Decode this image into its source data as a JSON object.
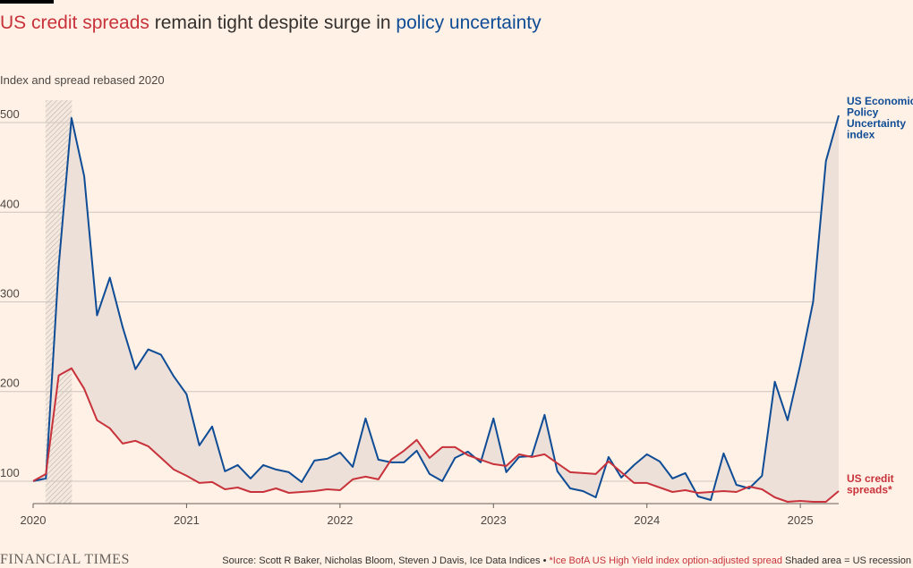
{
  "header": {
    "title_red": "US credit spreads",
    "title_mid": " remain tight despite surge in ",
    "title_blue": "policy uncertainty",
    "subtitle": "Index and spread rebased 2020"
  },
  "footer": {
    "brand": "FINANCIAL TIMES",
    "source_main": "Source: Scott R Baker, Nicholas Bloom, Steven J Davis, Ice Data Indices • ",
    "source_note": "*Ice BofA US High Yield index option-adjusted spread",
    "source_shade": " Shaded area = US recession"
  },
  "colors": {
    "background": "#fff1e5",
    "epu": "#0f4c96",
    "spread": "#c8323b",
    "fill": "#ede0d8",
    "grid": "#cec6c0"
  },
  "chart_data": {
    "type": "line",
    "title": "US credit spreads remain tight despite surge in policy uncertainty",
    "ylabel": "Index and spread rebased 2020",
    "xlim": [
      "2020-01",
      "2025-04"
    ],
    "ylim": [
      75,
      525
    ],
    "yticks": [
      100,
      200,
      300,
      400,
      500
    ],
    "xticks": [
      "2020",
      "2021",
      "2022",
      "2023",
      "2024",
      "2025"
    ],
    "grid": true,
    "recession": {
      "start": "2020-02",
      "end": "2020-04"
    },
    "x": [
      "2020-01",
      "2020-02",
      "2020-03",
      "2020-04",
      "2020-05",
      "2020-06",
      "2020-07",
      "2020-08",
      "2020-09",
      "2020-10",
      "2020-11",
      "2020-12",
      "2021-01",
      "2021-02",
      "2021-03",
      "2021-04",
      "2021-05",
      "2021-06",
      "2021-07",
      "2021-08",
      "2021-09",
      "2021-10",
      "2021-11",
      "2021-12",
      "2022-01",
      "2022-02",
      "2022-03",
      "2022-04",
      "2022-05",
      "2022-06",
      "2022-07",
      "2022-08",
      "2022-09",
      "2022-10",
      "2022-11",
      "2022-12",
      "2023-01",
      "2023-02",
      "2023-03",
      "2023-04",
      "2023-05",
      "2023-06",
      "2023-07",
      "2023-08",
      "2023-09",
      "2023-10",
      "2023-11",
      "2023-12",
      "2024-01",
      "2024-02",
      "2024-03",
      "2024-04",
      "2024-05",
      "2024-06",
      "2024-07",
      "2024-08",
      "2024-09",
      "2024-10",
      "2024-11",
      "2024-12",
      "2025-01",
      "2025-02",
      "2025-03",
      "2025-04"
    ],
    "series": [
      {
        "name": "US Economic Policy Uncertainty index",
        "label_lines": [
          "US Economic",
          "Policy",
          "Uncertainty",
          "index"
        ],
        "color": "#0f4c96",
        "values": [
          100,
          103,
          340,
          505,
          440,
          285,
          327,
          272,
          225,
          247,
          241,
          217,
          197,
          140,
          161,
          111,
          118,
          103,
          118,
          113,
          110,
          99,
          123,
          125,
          132,
          116,
          170,
          124,
          121,
          121,
          134,
          108,
          100,
          126,
          133,
          121,
          170,
          110,
          127,
          128,
          174,
          111,
          92,
          89,
          82,
          127,
          104,
          118,
          130,
          122,
          103,
          109,
          83,
          79,
          131,
          96,
          92,
          106,
          211,
          168,
          230,
          300,
          457,
          508
        ]
      },
      {
        "name": "US credit spreads*",
        "label_lines": [
          "US credit",
          "spreads*"
        ],
        "color": "#c8323b",
        "values": [
          100,
          108,
          218,
          226,
          203,
          168,
          159,
          142,
          145,
          139,
          126,
          113,
          106,
          98,
          99,
          91,
          93,
          88,
          88,
          92,
          87,
          88,
          89,
          91,
          90,
          102,
          105,
          102,
          124,
          134,
          146,
          126,
          138,
          138,
          129,
          124,
          119,
          117,
          130,
          127,
          130,
          120,
          110,
          109,
          108,
          122,
          110,
          98,
          98,
          93,
          88,
          90,
          87,
          88,
          89,
          88,
          94,
          91,
          82,
          77,
          78,
          77,
          77,
          89
        ]
      }
    ]
  }
}
